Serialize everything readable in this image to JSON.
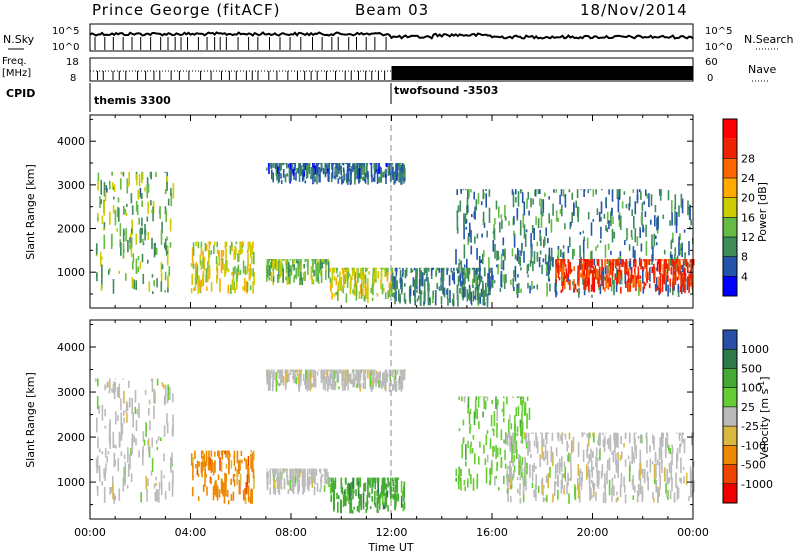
{
  "header": {
    "station": "Prince George (fitACF)",
    "beam": "Beam 03",
    "date": "18/Nov/2014"
  },
  "summary_panels": {
    "nsky_label": "N.Sky",
    "nsky_ticks": [
      "10^5",
      "10^0"
    ],
    "nsearch_label": "N.Search",
    "nsearch_ticks": [
      "10^5",
      "10^0"
    ],
    "freq_label_line1": "Freq.",
    "freq_label_line2": "[MHz]",
    "freq_ticks": [
      "18",
      "8"
    ],
    "nave_label": "Nave",
    "nave_ticks": [
      "60",
      "0"
    ],
    "cpid_label": "CPID",
    "cpid_segments": [
      {
        "name": "themis 3300",
        "start_hour": 0,
        "end_hour": 12
      },
      {
        "name": "twofsound -3503",
        "start_hour": 12,
        "end_hour": 24
      }
    ]
  },
  "x_axis": {
    "label": "Time UT",
    "ticks": [
      "00:00",
      "04:00",
      "08:00",
      "12:00",
      "16:00",
      "20:00",
      "00:00"
    ],
    "tick_hours": [
      0,
      4,
      8,
      12,
      16,
      20,
      24
    ],
    "range_hours": [
      0,
      24
    ]
  },
  "colors": {
    "power": [
      "#0000ff",
      "#2255aa",
      "#3d8c5a",
      "#66bb44",
      "#cccc00",
      "#ffaa00",
      "#ff6600",
      "#ee2200",
      "#ff0000"
    ],
    "velocity": [
      "#2a4fa8",
      "#2d7a4a",
      "#44aa33",
      "#66cc33",
      "#bbbbbb",
      "#d9b840",
      "#ee8800",
      "#ee4400",
      "#ee0000"
    ]
  },
  "chart_data": [
    {
      "type": "heatmap",
      "title": "Power",
      "ylabel": "Slant Range [km]",
      "xlabel": "",
      "y_ticks": [
        "1000",
        "2000",
        "3000",
        "4000"
      ],
      "y_tick_values": [
        1000,
        2000,
        3000,
        4000
      ],
      "ylim": [
        180,
        4600
      ],
      "colorbar": {
        "label": "Power [dB]",
        "ticks": [
          "4",
          "8",
          "12",
          "16",
          "20",
          "24",
          "28"
        ],
        "tick_values": [
          4,
          8,
          12,
          16,
          20,
          24,
          28
        ],
        "range": [
          0,
          32
        ]
      },
      "regions": [
        {
          "name": "early-near",
          "t": [
            0.2,
            3.3
          ],
          "r": [
            500,
            3300
          ],
          "level": 12,
          "spread": 10
        },
        {
          "name": "morning",
          "t": [
            4.0,
            6.5
          ],
          "r": [
            500,
            1700
          ],
          "level": 16,
          "spread": 8
        },
        {
          "name": "mid-morning",
          "t": [
            7.0,
            9.5
          ],
          "r": [
            700,
            1300
          ],
          "level": 12,
          "spread": 8
        },
        {
          "name": "far-band",
          "t": [
            7.0,
            12.5
          ],
          "r": [
            3000,
            3500
          ],
          "level": 6,
          "spread": 6
        },
        {
          "name": "near-noon",
          "t": [
            9.5,
            12.0
          ],
          "r": [
            300,
            1100
          ],
          "level": 16,
          "spread": 8
        },
        {
          "name": "noon-mid",
          "t": [
            12.0,
            16.0
          ],
          "r": [
            200,
            1100
          ],
          "level": 8,
          "spread": 6
        },
        {
          "name": "afternoon-wedge",
          "t": [
            14.5,
            24.0
          ],
          "r": [
            400,
            2900
          ],
          "level": 8,
          "spread": 8
        },
        {
          "name": "evening-strong",
          "t": [
            18.5,
            24.0
          ],
          "r": [
            500,
            1300
          ],
          "level": 26,
          "spread": 6
        }
      ]
    },
    {
      "type": "heatmap",
      "title": "Velocity",
      "ylabel": "Slant Range [km]",
      "xlabel": "Time UT",
      "y_ticks": [
        "1000",
        "2000",
        "3000",
        "4000"
      ],
      "y_tick_values": [
        1000,
        2000,
        3000,
        4000
      ],
      "ylim": [
        180,
        4600
      ],
      "colorbar": {
        "label": "Velocity [m s-1]",
        "ticks": [
          "1000",
          "500",
          "100",
          "25",
          "-25",
          "-100",
          "-500",
          "-1000"
        ],
        "tick_values": [
          1000,
          500,
          100,
          25,
          -25,
          -100,
          -500,
          -1000
        ]
      },
      "regions": [
        {
          "name": "early-gray",
          "t": [
            0.2,
            3.3
          ],
          "r": [
            500,
            3300
          ],
          "class": 4
        },
        {
          "name": "morning-orange",
          "t": [
            4.0,
            6.5
          ],
          "r": [
            500,
            1700
          ],
          "class": 6
        },
        {
          "name": "mid-gray",
          "t": [
            7.0,
            9.5
          ],
          "r": [
            700,
            1300
          ],
          "class": 4
        },
        {
          "name": "far-gray",
          "t": [
            7.0,
            12.5
          ],
          "r": [
            3000,
            3500
          ],
          "class": 4
        },
        {
          "name": "near-noon-green",
          "t": [
            9.5,
            12.5
          ],
          "r": [
            300,
            1100
          ],
          "class": 2
        },
        {
          "name": "afternoon-green",
          "t": [
            14.5,
            17.5
          ],
          "r": [
            800,
            2900
          ],
          "class": 3
        },
        {
          "name": "evening-gray",
          "t": [
            16.5,
            24.0
          ],
          "r": [
            500,
            2100
          ],
          "class": 4
        }
      ]
    }
  ]
}
